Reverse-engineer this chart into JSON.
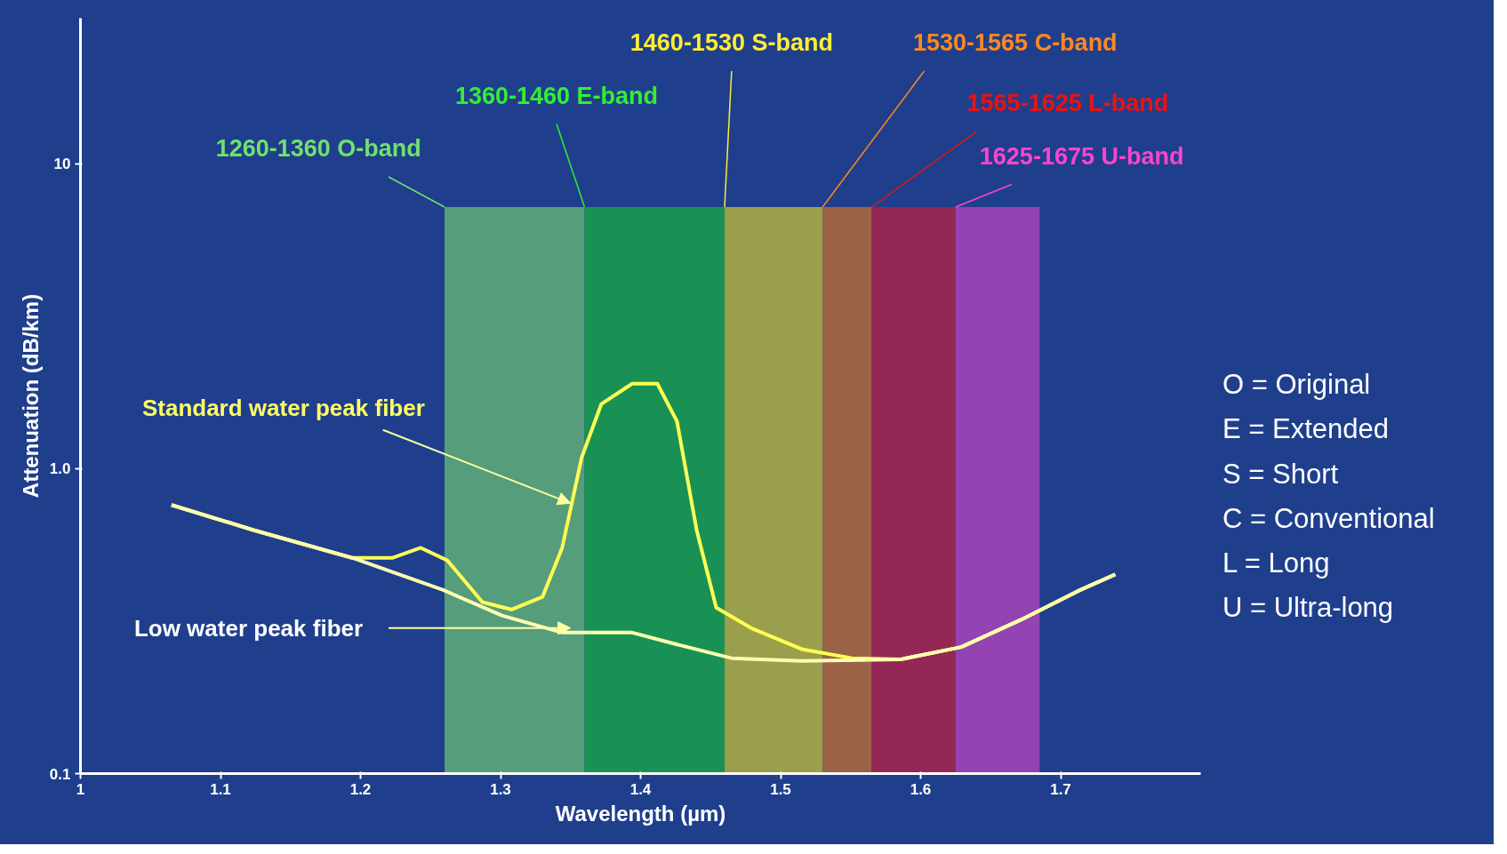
{
  "chart_data": {
    "type": "line",
    "xlabel": "Wavelength (µm)",
    "ylabel": "Attenuation (dB/km)",
    "log": "y",
    "xlim": [
      1,
      1.8
    ],
    "xticks": [
      1,
      1.1,
      1.2,
      1.3,
      1.4,
      1.5,
      1.6,
      1.7
    ],
    "ylim": [
      0.1,
      30
    ],
    "yticks": [
      0.1,
      {
        "value": 1,
        "label": "1.0"
      },
      10
    ],
    "grid": false,
    "line_style": "solid",
    "marker": "none",
    "series": [
      {
        "color": "#ffff55",
        "x": [
          1.065,
          1.123,
          1.194,
          1.223,
          1.243,
          1.262,
          1.287,
          1.308,
          1.33,
          1.344,
          1.358,
          1.372,
          1.394,
          1.412,
          1.426,
          1.44,
          1.454,
          1.479,
          1.515,
          1.551,
          1.586,
          1.629,
          1.672,
          1.714,
          1.739
        ],
        "values": [
          0.76,
          0.63,
          0.51,
          0.51,
          0.55,
          0.5,
          0.365,
          0.345,
          0.38,
          0.55,
          1.09,
          1.63,
          1.9,
          1.9,
          1.43,
          0.63,
          0.35,
          0.3,
          0.256,
          0.239,
          0.237,
          0.26,
          0.32,
          0.4,
          0.45
        ]
      },
      {
        "color": "#ffffb0",
        "x": [
          1.065,
          1.123,
          1.194,
          1.259,
          1.301,
          1.344,
          1.394,
          1.429,
          1.465,
          1.515,
          1.586,
          1.629,
          1.672,
          1.714,
          1.739
        ],
        "values": [
          0.76,
          0.63,
          0.51,
          0.4,
          0.33,
          0.29,
          0.29,
          0.263,
          0.239,
          0.234,
          0.237,
          0.26,
          0.32,
          0.4,
          0.45
        ]
      }
    ],
    "bands": [
      {
        "axis": "x",
        "from": 1.26,
        "to": 1.36,
        "label": "1260-1360 O-band",
        "color": "#5fae78"
      },
      {
        "axis": "x",
        "from": 1.36,
        "to": 1.46,
        "label": "1360-1460 E-band",
        "color": "#1aa04a"
      },
      {
        "axis": "x",
        "from": 1.46,
        "to": 1.53,
        "label": "1460-1530 S-band",
        "color": "#b0b040"
      },
      {
        "axis": "x",
        "from": 1.53,
        "to": 1.565,
        "label": "1530-1565 C-band",
        "color": "#b06a3c"
      },
      {
        "axis": "x",
        "from": 1.565,
        "to": 1.625,
        "label": "1565-1625 L-band",
        "color": "#a8244c"
      },
      {
        "axis": "x",
        "from": 1.625,
        "to": 1.685,
        "label": "1625-1675 U-band",
        "color": "#a844b8"
      }
    ],
    "annotations": [
      {
        "text": "Standard water peak fiber",
        "x": 1.35,
        "y": 0.77
      },
      {
        "text": "Low water peak fiber",
        "x": 1.35,
        "y": 0.3
      },
      "O = Original",
      "E = Extended",
      "S = Short",
      "C = Conventional",
      "L = Long",
      "U = Ultra-long"
    ]
  }
}
